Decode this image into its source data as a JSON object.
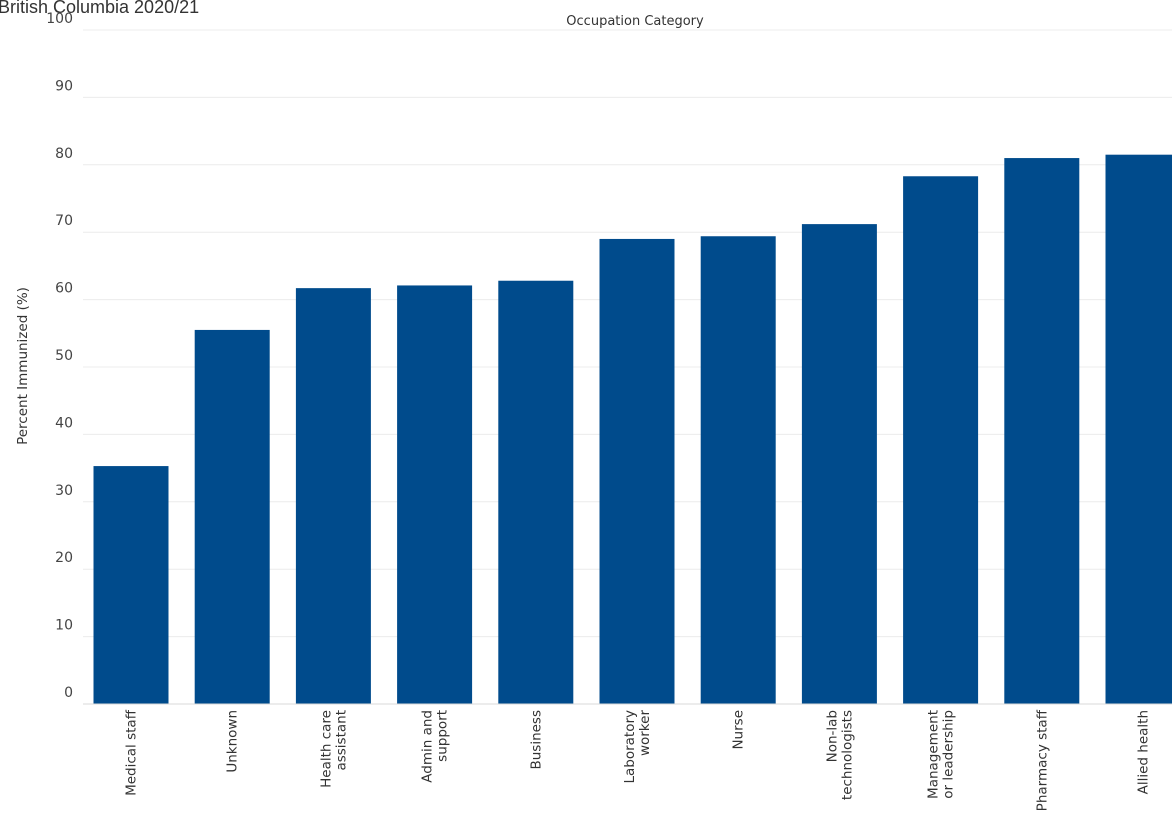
{
  "page": {
    "title": "British Columbia 2020/21"
  },
  "chart_data": {
    "type": "bar",
    "title": "Occupation Category",
    "ylabel": "Percent Immunized (%)",
    "xlabel": "",
    "ylim": [
      0,
      100
    ],
    "yticks": [
      0,
      10,
      20,
      30,
      40,
      50,
      60,
      70,
      80,
      90,
      100
    ],
    "grid": true,
    "bar_color": "#004b8c",
    "categories": [
      [
        "Medical staff"
      ],
      [
        "Unknown"
      ],
      [
        "Health care",
        "assistant"
      ],
      [
        "Admin and",
        "support"
      ],
      [
        "Business"
      ],
      [
        "Laboratory",
        "worker"
      ],
      [
        "Nurse"
      ],
      [
        "Non-lab",
        "technologists"
      ],
      [
        "Management",
        "or leadership"
      ],
      [
        "Pharmacy staff"
      ],
      [
        "Allied health"
      ]
    ],
    "values": [
      35.3,
      55.5,
      61.7,
      62.1,
      62.8,
      69.0,
      69.4,
      71.2,
      78.3,
      81.0,
      81.5
    ]
  }
}
